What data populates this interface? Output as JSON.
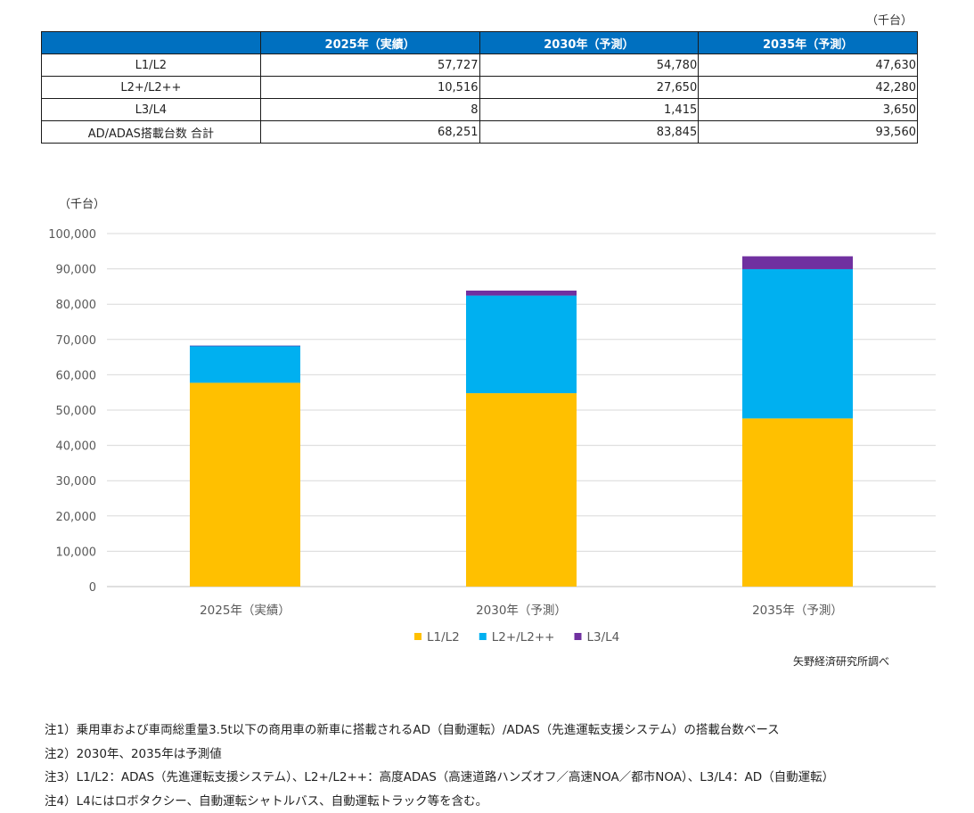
{
  "table": {
    "unit": "（千台）",
    "headers": [
      "",
      "2025年（実績）",
      "2030年（予測）",
      "2035年（予測）"
    ],
    "rows": [
      {
        "label": "L1/L2",
        "values": [
          "57,727",
          "54,780",
          "47,630"
        ]
      },
      {
        "label": "L2+/L2++",
        "values": [
          "10,516",
          "27,650",
          "42,280"
        ]
      },
      {
        "label": "L3/L4",
        "values": [
          "8",
          "1,415",
          "3,650"
        ]
      },
      {
        "label": "AD/ADAS搭載台数 合計",
        "values": [
          "68,251",
          "83,845",
          "93,560"
        ]
      }
    ]
  },
  "chart_data": {
    "type": "bar",
    "stacked": true,
    "unit_label": "（千台）",
    "categories": [
      "2025年（実績）",
      "2030年（予測）",
      "2035年（予測）"
    ],
    "series": [
      {
        "name": "L1/L2",
        "color": "#FFC000",
        "values": [
          57727,
          54780,
          47630
        ]
      },
      {
        "name": "L2+/L2++",
        "color": "#00B0F0",
        "values": [
          10516,
          27650,
          42280
        ]
      },
      {
        "name": "L3/L4",
        "color": "#7030A0",
        "values": [
          8,
          1415,
          3650
        ]
      }
    ],
    "ylim": [
      0,
      100000
    ],
    "yticks": [
      0,
      10000,
      20000,
      30000,
      40000,
      50000,
      60000,
      70000,
      80000,
      90000,
      100000
    ],
    "ytick_labels": [
      "0",
      "10,000",
      "20,000",
      "30,000",
      "40,000",
      "50,000",
      "60,000",
      "70,000",
      "80,000",
      "90,000",
      "100,000"
    ],
    "grid": true,
    "legend_position": "bottom"
  },
  "source": "矢野経済研究所調べ",
  "notes": [
    "注1）乗用車および車両総重量3.5t以下の商用車の新車に搭載されるAD（自動運転）/ADAS（先進運転支援システム）の搭載台数ベース",
    "注2）2030年、2035年は予測値",
    "注3）L1/L2：ADAS（先進運転支援システム）、L2+/L2++：高度ADAS（高速道路ハンズオフ／高速NOA／都市NOA）、L3/L4：AD（自動運転）",
    "注4）L4にはロボタクシー、自動運転シャトルバス、自動運転トラック等を含む。"
  ]
}
